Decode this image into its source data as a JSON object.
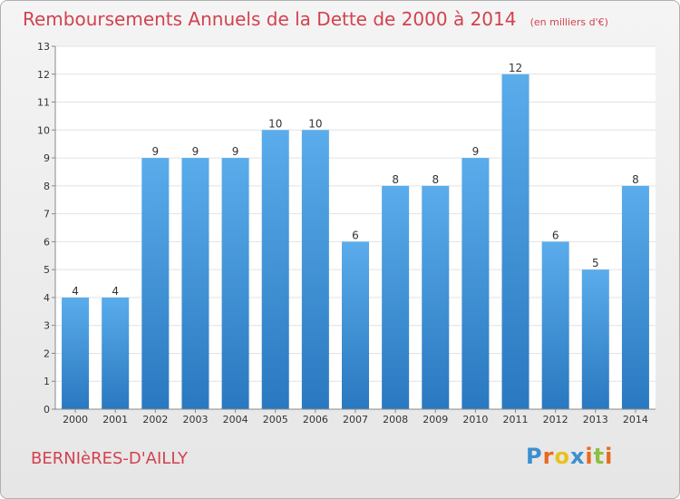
{
  "chart_data": {
    "type": "bar",
    "title": "Remboursements Annuels de la Dette de 2000 à 2014",
    "unit": "(en milliers d'€)",
    "categories": [
      "2000",
      "2001",
      "2002",
      "2003",
      "2004",
      "2005",
      "2006",
      "2007",
      "2008",
      "2009",
      "2010",
      "2011",
      "2012",
      "2013",
      "2014"
    ],
    "values": [
      4,
      4,
      9,
      9,
      9,
      10,
      10,
      6,
      8,
      8,
      9,
      12,
      6,
      5,
      8
    ],
    "ylim": [
      0,
      13
    ],
    "yticks": [
      0,
      1,
      2,
      3,
      4,
      5,
      6,
      7,
      8,
      9,
      10,
      11,
      12,
      13
    ],
    "grid": true,
    "bar_color": "#3a8ed8"
  },
  "commune": "BERNIèRES-D'AILLY",
  "logo": {
    "letters": [
      "P",
      "r",
      "o",
      "x",
      "i",
      "t",
      "i"
    ],
    "colors": [
      "#3b8fd0",
      "#e86a1c",
      "#e8c21c",
      "#3b8fd0",
      "#e86a1c",
      "#8cbf3f",
      "#e86a1c"
    ]
  }
}
